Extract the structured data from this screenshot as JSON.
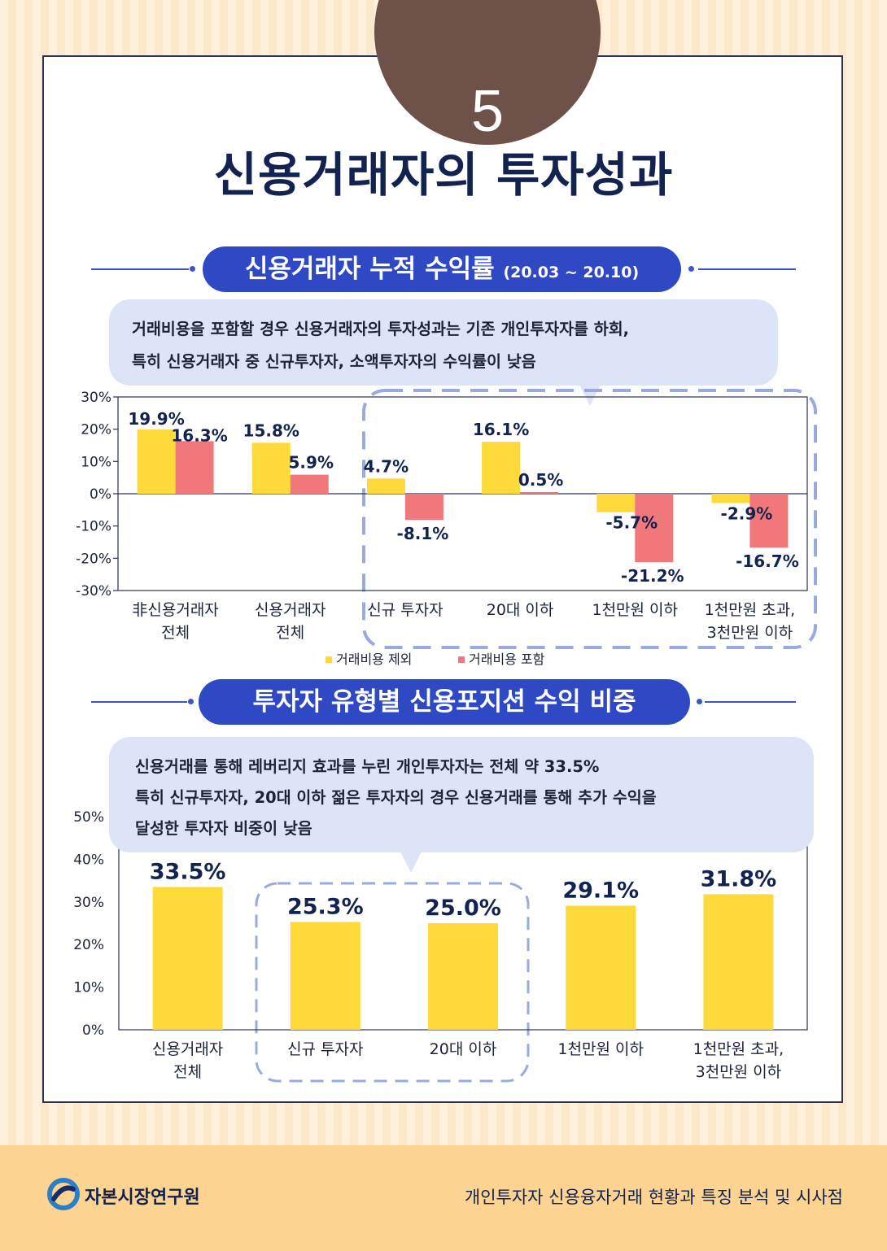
{
  "page_number": "5",
  "title": "신용거래자의 투자성과",
  "organization": "자본시장연구원",
  "report_title": "개인투자자 신용융자거래 현황과 특징 분석 및 시사점",
  "colors": {
    "excluding_cost": "#fdd93a",
    "including_cost": "#f0787a",
    "accent": "#2f49c4",
    "badge": "#6e5148",
    "dashed": "#9aaade"
  },
  "section1": {
    "heading": "신용거래자 누적 수익률",
    "period": "(20.03 ~ 20.10)",
    "note_line1": "거래비용을 포함할 경우 신용거래자의 투자성과는 기존 개인투자자를 하회,",
    "note_line2": "특히 신용거래자 중 신규투자자, 소액투자자의 수익률이 낮음"
  },
  "section2": {
    "heading": "투자자 유형별 신용포지션 수익 비중",
    "note_line1": "신용거래를 통해 레버리지 효과를 누린 개인투자자는 전체 약 33.5%",
    "note_line2": "특히 신규투자자, 20대 이하 젊은 투자자의 경우 신용거래를 통해 추가 수익을",
    "note_line3": "달성한 투자자 비중이 낮음"
  },
  "chart_data": [
    {
      "type": "bar",
      "categories": [
        [
          "非신용거래자",
          "전체"
        ],
        [
          "신용거래자",
          "전체"
        ],
        [
          "신규 투자자"
        ],
        [
          "20대 이하"
        ],
        [
          "1천만원 이하"
        ],
        [
          "1천만원 초과,",
          "3천만원 이하"
        ]
      ],
      "series": [
        {
          "name": "거래비용 제외",
          "values": [
            19.9,
            15.8,
            4.7,
            16.1,
            -5.7,
            -2.9
          ],
          "labels": [
            "19.9%",
            "15.8%",
            "4.7%",
            "16.1%",
            "-5.7%",
            "-2.9%"
          ]
        },
        {
          "name": "거래비용 포함",
          "values": [
            16.3,
            5.9,
            -8.1,
            0.5,
            -21.2,
            -16.7
          ],
          "labels": [
            "16.3%",
            "5.9%",
            "-8.1%",
            "0.5%",
            "-21.2%",
            "-16.7%"
          ]
        }
      ],
      "ylim": [
        -30,
        30
      ],
      "yticks": [
        30,
        20,
        10,
        0,
        -10,
        -20,
        -30
      ],
      "ytick_labels": [
        "30%",
        "20%",
        "10%",
        "0%",
        "-10%",
        "-20%",
        "-30%"
      ],
      "legend": "bottom",
      "highlight": "categories 3-6"
    },
    {
      "type": "bar",
      "categories": [
        [
          "신용거래자",
          "전체"
        ],
        [
          "신규 투자자"
        ],
        [
          "20대 이하"
        ],
        [
          "1천만원 이하"
        ],
        [
          "1천만원 초과,",
          "3천만원 이하"
        ]
      ],
      "values": [
        33.5,
        25.3,
        25.0,
        29.1,
        31.8
      ],
      "labels": [
        "33.5%",
        "25.3%",
        "25.0%",
        "29.1%",
        "31.8%"
      ],
      "ylim": [
        0,
        50
      ],
      "yticks": [
        50,
        40,
        30,
        20,
        10,
        0
      ],
      "ytick_labels": [
        "50%",
        "40%",
        "30%",
        "20%",
        "10%",
        "0%"
      ],
      "highlight": "categories 2-3"
    }
  ]
}
